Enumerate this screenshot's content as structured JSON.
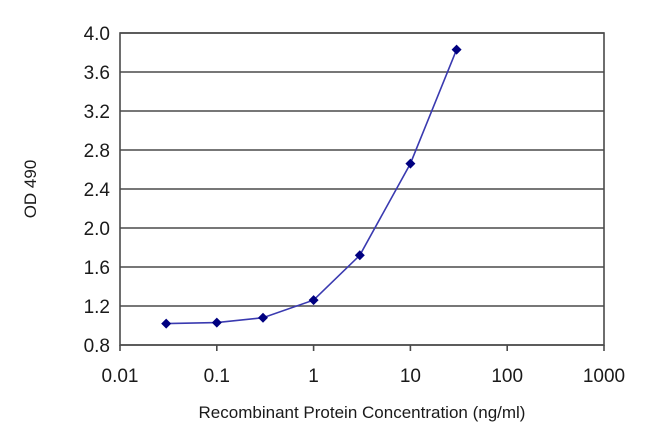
{
  "chart_data": {
    "type": "line",
    "title": "",
    "xlabel": "Recombinant Protein Concentration (ng/ml)",
    "ylabel": "OD 490",
    "x_scale": "log",
    "xlim": [
      0.01,
      1000
    ],
    "ylim": [
      0.8,
      4.0
    ],
    "x_ticks": [
      "0.01",
      "0.1",
      "1",
      "10",
      "100",
      "1000"
    ],
    "y_ticks": [
      "0.8",
      "1.2",
      "1.6",
      "2.0",
      "2.4",
      "2.8",
      "3.2",
      "3.6",
      "4.0"
    ],
    "grid": "horizontal",
    "legend": "none",
    "series": [
      {
        "color": "#3a3ab0",
        "marker_color": "#000080",
        "marker": "diamond",
        "x": [
          0.03,
          0.1,
          0.3,
          1,
          3,
          10,
          30
        ],
        "y": [
          1.02,
          1.03,
          1.08,
          1.26,
          1.72,
          2.66,
          3.83
        ]
      }
    ]
  }
}
